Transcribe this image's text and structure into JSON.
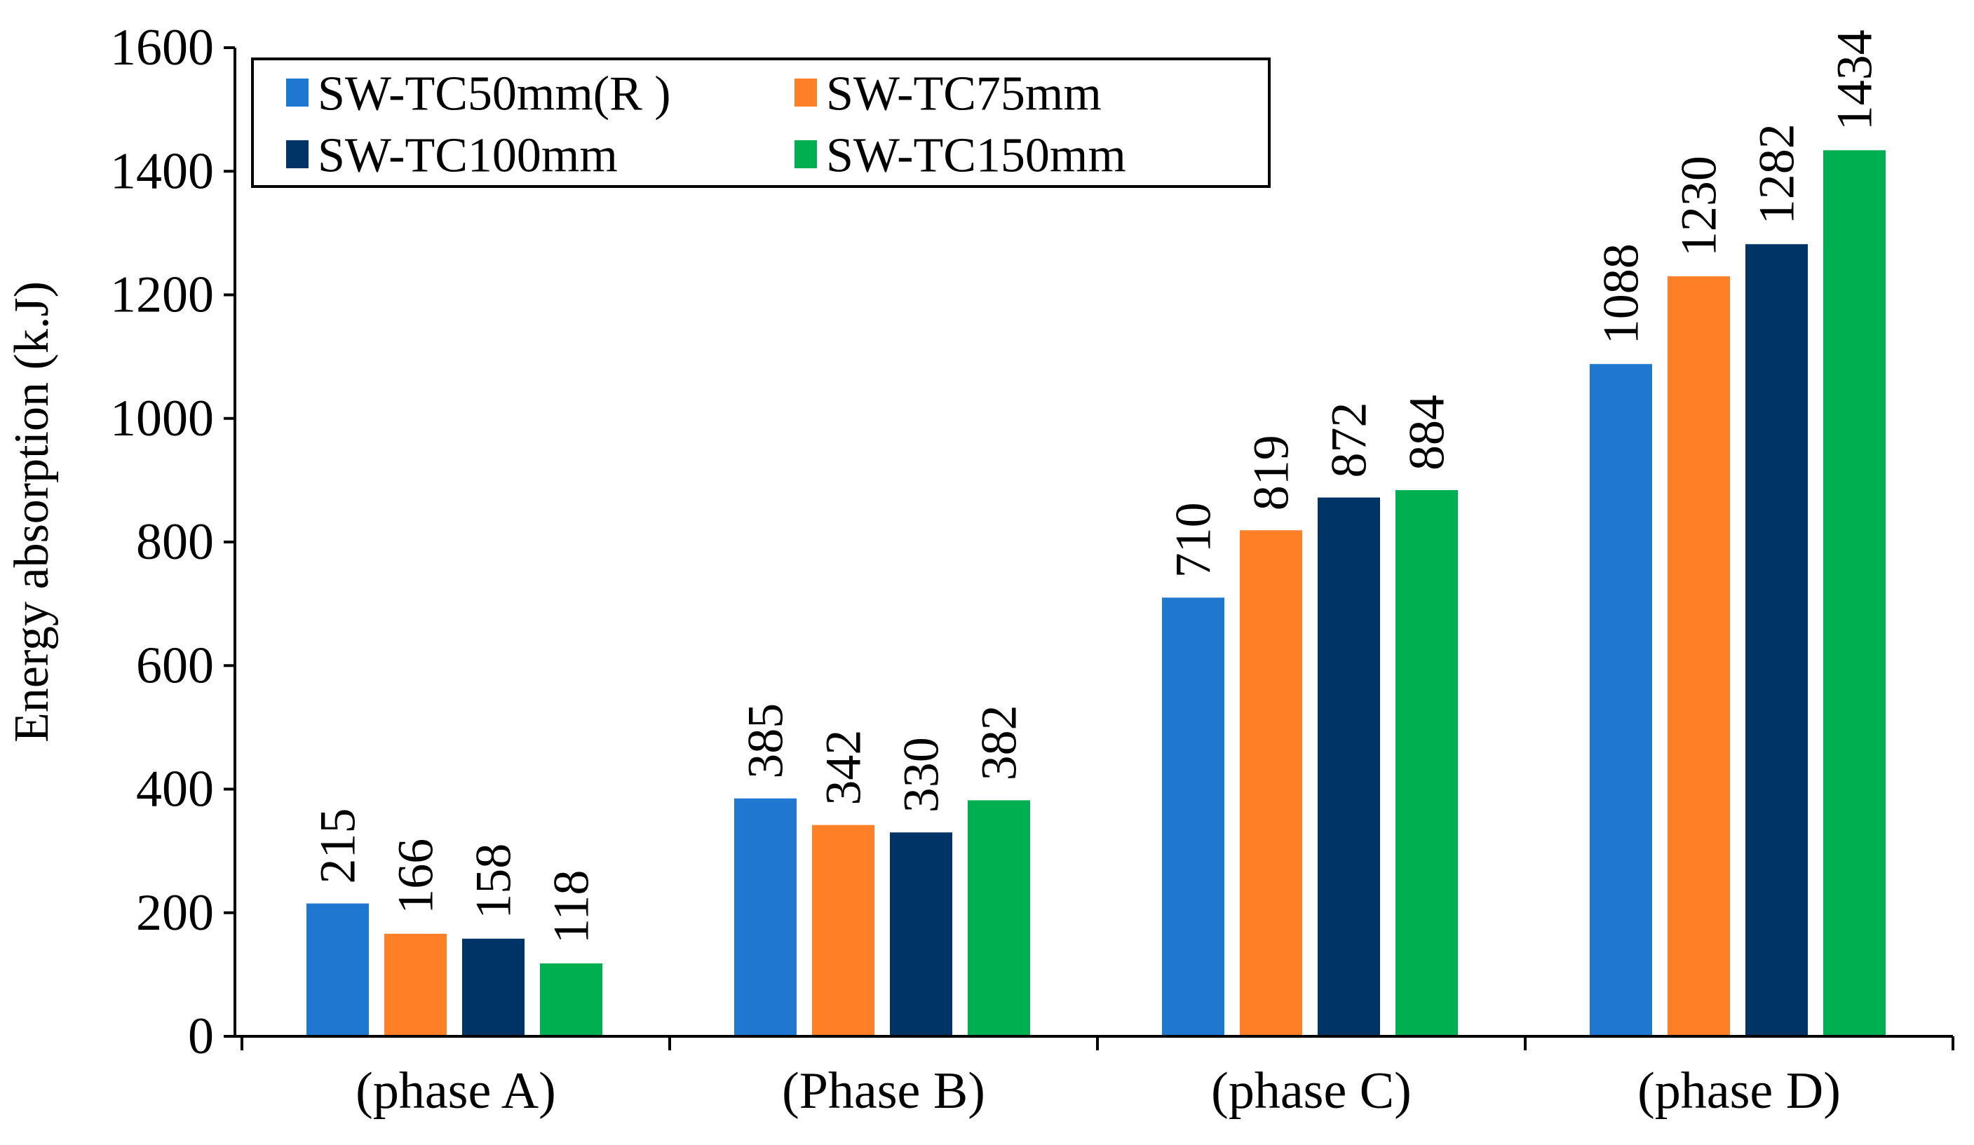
{
  "chart_data": {
    "type": "bar",
    "title": "",
    "xlabel": "",
    "ylabel": "Energy absorption (k.J)",
    "ylim": [
      0,
      1600
    ],
    "yticks": [
      0,
      200,
      400,
      600,
      800,
      1000,
      1200,
      1400,
      1600
    ],
    "grid": false,
    "legend_position": "top-left",
    "categories": [
      "(phase A)",
      "(Phase B)",
      "(phase C)",
      "(phase D)"
    ],
    "series": [
      {
        "name": "SW-TC50mm(R )",
        "color": "#1f77d0",
        "values": [
          215,
          385,
          710,
          1088
        ]
      },
      {
        "name": "SW-TC75mm",
        "color": "#ff7f27",
        "values": [
          166,
          342,
          819,
          1230
        ]
      },
      {
        "name": "SW-TC100mm",
        "color": "#003366",
        "values": [
          158,
          330,
          872,
          1282
        ]
      },
      {
        "name": "SW-TC150mm",
        "color": "#00b050",
        "values": [
          118,
          382,
          884,
          1434
        ]
      }
    ]
  }
}
